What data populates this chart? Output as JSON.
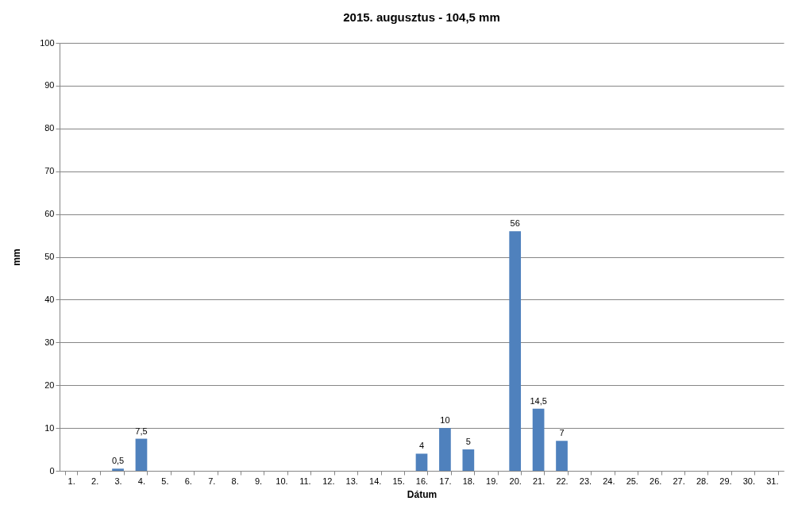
{
  "chart_data": {
    "type": "bar",
    "title": "2015. augusztus - 104,5 mm",
    "xlabel": "Dátum",
    "ylabel": "mm",
    "categories": [
      "1.",
      "2.",
      "3.",
      "4.",
      "5.",
      "6.",
      "7.",
      "8.",
      "9.",
      "10.",
      "11.",
      "12.",
      "13.",
      "14.",
      "15.",
      "16.",
      "17.",
      "18.",
      "19.",
      "20.",
      "21.",
      "22.",
      "23.",
      "24.",
      "25.",
      "26.",
      "27.",
      "28.",
      "29.",
      "30.",
      "31."
    ],
    "values": [
      null,
      null,
      0.5,
      7.5,
      null,
      null,
      null,
      null,
      null,
      null,
      null,
      null,
      null,
      null,
      null,
      4,
      10,
      5,
      null,
      56,
      14.5,
      7,
      null,
      null,
      null,
      null,
      null,
      null,
      null,
      null,
      null
    ],
    "value_labels": [
      null,
      null,
      "0,5",
      "7,5",
      null,
      null,
      null,
      null,
      null,
      null,
      null,
      null,
      null,
      null,
      null,
      "4",
      "10",
      "5",
      null,
      "56",
      "14,5",
      "7",
      null,
      null,
      null,
      null,
      null,
      null,
      null,
      null,
      null
    ],
    "color": "#4f81bd",
    "ylim": [
      0,
      100
    ],
    "yticks": [
      0,
      10,
      20,
      30,
      40,
      50,
      60,
      70,
      80,
      90,
      100
    ],
    "grid": "y"
  }
}
